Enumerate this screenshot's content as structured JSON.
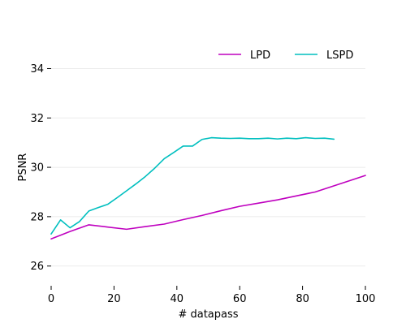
{
  "chart_data": {
    "type": "line",
    "title": "",
    "xlabel": "# datapass",
    "ylabel": "PSNR",
    "xlim": [
      0,
      100
    ],
    "ylim": [
      25.2,
      35.2
    ],
    "xticks": [
      0,
      20,
      40,
      60,
      80,
      100
    ],
    "yticks": [
      26,
      28,
      30,
      32,
      34
    ],
    "grid": "horizontal",
    "legend": "top-right",
    "series": [
      {
        "name": "LPD",
        "color": "#bf00bf",
        "x": [
          0,
          6,
          12,
          18,
          24,
          30,
          36,
          42,
          48,
          54,
          60,
          66,
          72,
          78,
          84,
          90,
          96,
          100
        ],
        "y": [
          27.1,
          27.4,
          27.67,
          27.58,
          27.49,
          27.6,
          27.7,
          27.88,
          28.05,
          28.24,
          28.42,
          28.55,
          28.68,
          28.84,
          29.0,
          29.25,
          29.5,
          29.67
        ]
      },
      {
        "name": "LSPD",
        "color": "#00bfbf",
        "x": [
          0,
          3,
          6,
          9,
          12,
          15,
          18,
          21,
          24,
          27,
          30,
          33,
          36,
          39,
          42,
          45,
          48,
          51,
          54,
          57,
          60,
          63,
          66,
          69,
          72,
          75,
          78,
          81,
          84,
          87,
          90
        ],
        "y": [
          27.3,
          27.87,
          27.55,
          27.8,
          28.23,
          28.37,
          28.5,
          28.77,
          29.05,
          29.33,
          29.63,
          29.97,
          30.35,
          30.6,
          30.86,
          30.86,
          31.13,
          31.2,
          31.18,
          31.17,
          31.18,
          31.16,
          31.16,
          31.18,
          31.15,
          31.18,
          31.16,
          31.2,
          31.17,
          31.18,
          31.14
        ]
      }
    ]
  }
}
